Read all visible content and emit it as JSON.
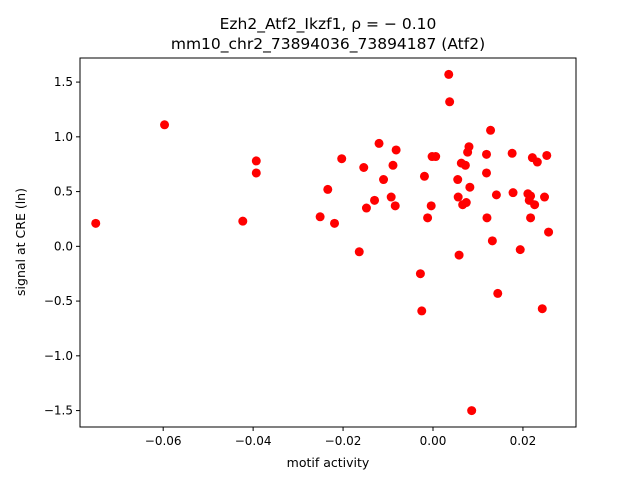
{
  "chart_data": {
    "type": "scatter",
    "title_line1": "Ezh2_Atf2_Ikzf1, ρ = − 0.10",
    "title_line2": "mm10_chr2_73894036_73894187 (Atf2)",
    "xlabel": "motif activity",
    "ylabel": "signal at CRE (ln)",
    "xlim": [
      -0.0785,
      0.0318
    ],
    "ylim": [
      -1.65,
      1.72
    ],
    "xticks": [
      {
        "value": -0.06,
        "label": "−0.06"
      },
      {
        "value": -0.04,
        "label": "−0.04"
      },
      {
        "value": -0.02,
        "label": "−0.02"
      },
      {
        "value": 0.0,
        "label": "0.00"
      },
      {
        "value": 0.02,
        "label": "0.02"
      }
    ],
    "yticks": [
      {
        "value": -1.5,
        "label": "−1.5"
      },
      {
        "value": -1.0,
        "label": "−1.0"
      },
      {
        "value": -0.5,
        "label": "−0.5"
      },
      {
        "value": 0.0,
        "label": "0.0"
      },
      {
        "value": 0.5,
        "label": "0.5"
      },
      {
        "value": 1.0,
        "label": "1.0"
      },
      {
        "value": 1.5,
        "label": "1.5"
      }
    ],
    "grid": false,
    "marker_color": "#ff0000",
    "points": [
      {
        "x": -0.075,
        "y": 0.21
      },
      {
        "x": -0.0597,
        "y": 1.11
      },
      {
        "x": -0.0423,
        "y": 0.23
      },
      {
        "x": -0.0393,
        "y": 0.78
      },
      {
        "x": -0.0393,
        "y": 0.67
      },
      {
        "x": -0.0251,
        "y": 0.27
      },
      {
        "x": -0.0234,
        "y": 0.52
      },
      {
        "x": -0.0219,
        "y": 0.21
      },
      {
        "x": -0.0203,
        "y": 0.8
      },
      {
        "x": -0.0164,
        "y": -0.05
      },
      {
        "x": -0.0154,
        "y": 0.72
      },
      {
        "x": -0.0148,
        "y": 0.35
      },
      {
        "x": -0.013,
        "y": 0.42
      },
      {
        "x": -0.012,
        "y": 0.94
      },
      {
        "x": -0.011,
        "y": 0.61
      },
      {
        "x": -0.0093,
        "y": 0.45
      },
      {
        "x": -0.0089,
        "y": 0.74
      },
      {
        "x": -0.0082,
        "y": 0.88
      },
      {
        "x": -0.0084,
        "y": 0.37
      },
      {
        "x": -0.0028,
        "y": -0.25
      },
      {
        "x": -0.0025,
        "y": -0.59
      },
      {
        "x": -0.0019,
        "y": 0.64
      },
      {
        "x": -0.0012,
        "y": 0.26
      },
      {
        "x": -0.0004,
        "y": 0.37
      },
      {
        "x": -0.0002,
        "y": 0.82
      },
      {
        "x": 0.0006,
        "y": 0.82
      },
      {
        "x": 0.0035,
        "y": 1.57
      },
      {
        "x": 0.0037,
        "y": 1.32
      },
      {
        "x": 0.0055,
        "y": 0.61
      },
      {
        "x": 0.0056,
        "y": 0.45
      },
      {
        "x": 0.0058,
        "y": -0.08
      },
      {
        "x": 0.0063,
        "y": 0.76
      },
      {
        "x": 0.0066,
        "y": 0.38
      },
      {
        "x": 0.0072,
        "y": 0.74
      },
      {
        "x": 0.0074,
        "y": 0.4
      },
      {
        "x": 0.0077,
        "y": 0.86
      },
      {
        "x": 0.008,
        "y": 0.91
      },
      {
        "x": 0.0082,
        "y": 0.54
      },
      {
        "x": 0.0086,
        "y": -1.5
      },
      {
        "x": 0.0119,
        "y": 0.84
      },
      {
        "x": 0.0119,
        "y": 0.67
      },
      {
        "x": 0.012,
        "y": 0.26
      },
      {
        "x": 0.0128,
        "y": 1.06
      },
      {
        "x": 0.0132,
        "y": 0.05
      },
      {
        "x": 0.0141,
        "y": 0.47
      },
      {
        "x": 0.0144,
        "y": -0.43
      },
      {
        "x": 0.0176,
        "y": 0.85
      },
      {
        "x": 0.0178,
        "y": 0.49
      },
      {
        "x": 0.0194,
        "y": -0.03
      },
      {
        "x": 0.0211,
        "y": 0.48
      },
      {
        "x": 0.0214,
        "y": 0.42
      },
      {
        "x": 0.0217,
        "y": 0.46
      },
      {
        "x": 0.0217,
        "y": 0.26
      },
      {
        "x": 0.0221,
        "y": 0.81
      },
      {
        "x": 0.0226,
        "y": 0.38
      },
      {
        "x": 0.0232,
        "y": 0.77
      },
      {
        "x": 0.0243,
        "y": -0.57
      },
      {
        "x": 0.0248,
        "y": 0.45
      },
      {
        "x": 0.0253,
        "y": 0.83
      },
      {
        "x": 0.0257,
        "y": 0.13
      }
    ]
  }
}
